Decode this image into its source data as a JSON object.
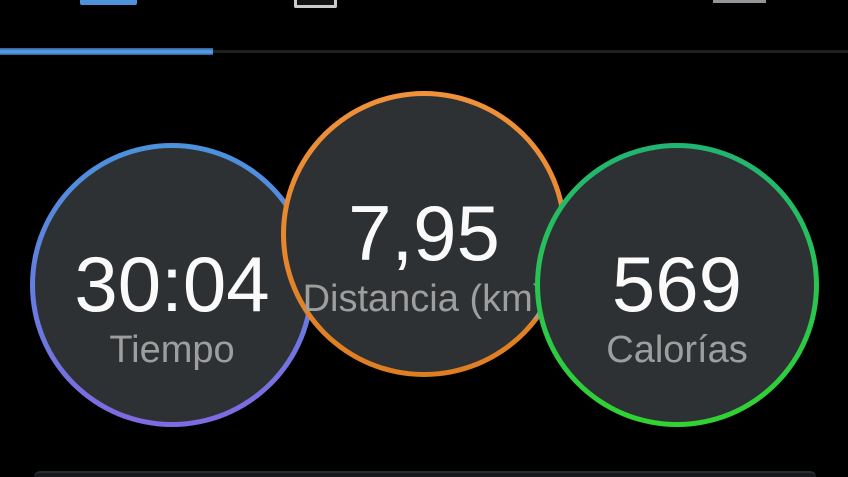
{
  "tabbar": {
    "active_tab_index": 0,
    "tabs": [
      {
        "id": "tab-1",
        "state": "active",
        "icon": "tab1-icon-bottom-fragment",
        "icon_color": "#4e93da"
      },
      {
        "id": "tab-2",
        "state": "inactive",
        "icon": "tab2-outlined-square-icon-bottom-fragment",
        "icon_color": "#cbcbcb"
      },
      {
        "id": "tab-4",
        "state": "inactive",
        "icon": "tab4-icon-bottom-fragment",
        "icon_color": "#939598"
      }
    ],
    "indicator": {
      "active_color": "#559ae2",
      "inactive_line_color": "#1e2124"
    }
  },
  "metrics": [
    {
      "id": "time",
      "value": "30:04",
      "label": "Tiempo",
      "ring_top": "#4b92dd",
      "ring_bottom": "#7e6ae2"
    },
    {
      "id": "distance",
      "value": "7,95",
      "label": "Distancia (km)",
      "ring_top": "#f0923a",
      "ring_bottom": "#de7d22"
    },
    {
      "id": "calories",
      "value": "569",
      "label": "Calorías",
      "ring_top": "#21b473",
      "ring_bottom": "#31d331"
    }
  ],
  "colors": {
    "background": "#000000",
    "circle_fill": "#2e3133",
    "value_text": "#fafafa",
    "label_text": "#9e9e9e",
    "accent_blue": "#559ae2",
    "card_edge": "#2b2e31"
  }
}
